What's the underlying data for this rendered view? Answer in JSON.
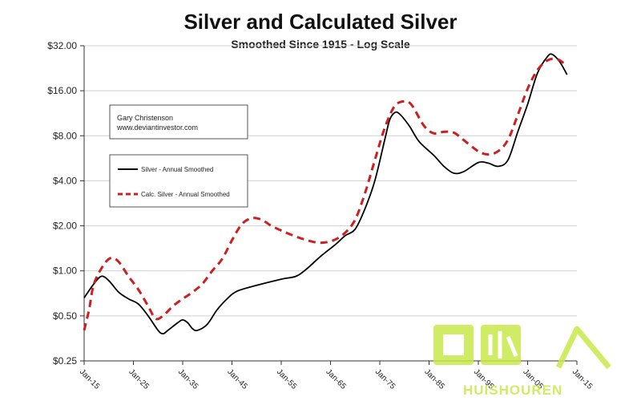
{
  "chart_data": {
    "type": "line",
    "title": "Silver and Calculated Silver",
    "subtitle": "Smoothed Since 1915 - Log Scale",
    "y_scale": "log",
    "ylim": [
      0.25,
      32
    ],
    "xlim": [
      1915,
      2015
    ],
    "y_ticks": [
      {
        "value": 0.25,
        "label": "$0.25"
      },
      {
        "value": 0.5,
        "label": "$0.50"
      },
      {
        "value": 1,
        "label": "$1.00"
      },
      {
        "value": 2,
        "label": "$2.00"
      },
      {
        "value": 4,
        "label": "$4.00"
      },
      {
        "value": 8,
        "label": "$8.00"
      },
      {
        "value": 16,
        "label": "$16.00"
      },
      {
        "value": 32,
        "label": "$32.00"
      }
    ],
    "x_ticks": [
      {
        "value": 1915,
        "label": "Jan-15"
      },
      {
        "value": 1925,
        "label": "Jan-25"
      },
      {
        "value": 1935,
        "label": "Jan-35"
      },
      {
        "value": 1945,
        "label": "Jan-45"
      },
      {
        "value": 1955,
        "label": "Jan-55"
      },
      {
        "value": 1965,
        "label": "Jan-65"
      },
      {
        "value": 1975,
        "label": "Jan-75"
      },
      {
        "value": 1985,
        "label": "Jan-85"
      },
      {
        "value": 1995,
        "label": "Jan-95"
      },
      {
        "value": 2005,
        "label": "Jan-05"
      },
      {
        "value": 2015,
        "label": "Jan-15"
      }
    ],
    "grid": "horizontal",
    "legend_position": "upper-left",
    "series": [
      {
        "name": "Silver - Annual Smoothed",
        "color": "#000000",
        "style": "solid",
        "points": [
          [
            1915,
            0.66
          ],
          [
            1917,
            0.82
          ],
          [
            1918.5,
            0.92
          ],
          [
            1920,
            0.86
          ],
          [
            1922,
            0.72
          ],
          [
            1924,
            0.65
          ],
          [
            1926,
            0.6
          ],
          [
            1928,
            0.5
          ],
          [
            1930,
            0.4
          ],
          [
            1931,
            0.38
          ],
          [
            1932,
            0.4
          ],
          [
            1934,
            0.45
          ],
          [
            1935,
            0.47
          ],
          [
            1936,
            0.45
          ],
          [
            1937,
            0.41
          ],
          [
            1938,
            0.4
          ],
          [
            1940,
            0.44
          ],
          [
            1942,
            0.55
          ],
          [
            1944,
            0.65
          ],
          [
            1946,
            0.73
          ],
          [
            1950,
            0.8
          ],
          [
            1955,
            0.88
          ],
          [
            1958,
            0.92
          ],
          [
            1960,
            1.02
          ],
          [
            1963,
            1.25
          ],
          [
            1966,
            1.5
          ],
          [
            1968,
            1.72
          ],
          [
            1970,
            1.9
          ],
          [
            1972,
            2.6
          ],
          [
            1974,
            4.0
          ],
          [
            1976,
            7.5
          ],
          [
            1977,
            10.2
          ],
          [
            1978,
            11.4
          ],
          [
            1979,
            11.2
          ],
          [
            1981,
            9.3
          ],
          [
            1983,
            7.3
          ],
          [
            1986,
            5.9
          ],
          [
            1988,
            5.0
          ],
          [
            1990,
            4.5
          ],
          [
            1992,
            4.6
          ],
          [
            1995,
            5.3
          ],
          [
            1997,
            5.25
          ],
          [
            1999,
            5.0
          ],
          [
            2001,
            5.5
          ],
          [
            2003,
            8.5
          ],
          [
            2005,
            13.0
          ],
          [
            2007,
            21.0
          ],
          [
            2009,
            27.0
          ],
          [
            2010,
            28.0
          ],
          [
            2011.5,
            25.0
          ],
          [
            2013,
            20.5
          ]
        ]
      },
      {
        "name": "Calc. Silver - Annual Smoothed",
        "color": "#cc1f1f",
        "style": "dashed",
        "points": [
          [
            1915,
            0.4
          ],
          [
            1916,
            0.55
          ],
          [
            1917,
            0.82
          ],
          [
            1919,
            1.1
          ],
          [
            1920.5,
            1.22
          ],
          [
            1922,
            1.15
          ],
          [
            1924,
            0.92
          ],
          [
            1926,
            0.75
          ],
          [
            1928,
            0.58
          ],
          [
            1929.5,
            0.48
          ],
          [
            1931,
            0.5
          ],
          [
            1933,
            0.58
          ],
          [
            1935,
            0.65
          ],
          [
            1937,
            0.72
          ],
          [
            1939,
            0.82
          ],
          [
            1941,
            1.0
          ],
          [
            1943,
            1.2
          ],
          [
            1945,
            1.6
          ],
          [
            1947,
            2.05
          ],
          [
            1949,
            2.25
          ],
          [
            1951,
            2.2
          ],
          [
            1953,
            2.0
          ],
          [
            1956,
            1.8
          ],
          [
            1959,
            1.65
          ],
          [
            1962,
            1.55
          ],
          [
            1964,
            1.55
          ],
          [
            1966,
            1.62
          ],
          [
            1968,
            1.8
          ],
          [
            1970,
            2.2
          ],
          [
            1972,
            3.3
          ],
          [
            1974,
            5.5
          ],
          [
            1976,
            9.0
          ],
          [
            1978,
            12.6
          ],
          [
            1980,
            13.6
          ],
          [
            1981.5,
            12.8
          ],
          [
            1984,
            9.3
          ],
          [
            1986,
            8.3
          ],
          [
            1988,
            8.5
          ],
          [
            1990,
            8.4
          ],
          [
            1992,
            7.5
          ],
          [
            1995,
            6.3
          ],
          [
            1997,
            6.0
          ],
          [
            1999,
            6.3
          ],
          [
            2001,
            7.5
          ],
          [
            2003,
            11.0
          ],
          [
            2005,
            16.5
          ],
          [
            2007,
            22.0
          ],
          [
            2009,
            25.5
          ],
          [
            2011,
            26.0
          ],
          [
            2013,
            23.5
          ]
        ]
      }
    ],
    "annotation": {
      "line1": "Gary Christenson",
      "line2": "www.deviantinvestor.com"
    }
  },
  "watermark": {
    "brand_text": "HUISHOUREN",
    "brand_color": "#c8e84a"
  }
}
